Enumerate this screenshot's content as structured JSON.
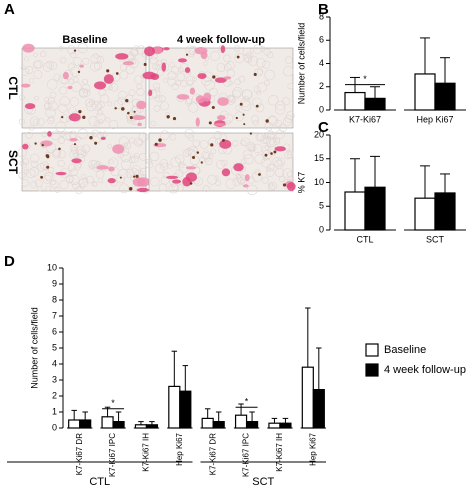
{
  "panel_a": {
    "label": "A",
    "columns": [
      "Baseline",
      "4 week follow-up"
    ],
    "rows": [
      "CTL",
      "SCT"
    ]
  },
  "chart_data": [
    {
      "type": "bar",
      "label": "B",
      "y_label": "Number of cells/field",
      "categories": [
        "K7-Ki67",
        "Hep Ki67"
      ],
      "significance": [
        "*",
        null
      ],
      "series": [
        {
          "color": "#ffffff",
          "values": [
            1.5,
            3.1
          ],
          "errors": [
            1.3,
            3.1
          ]
        },
        {
          "color": "#000000",
          "values": [
            1.0,
            2.3
          ],
          "errors": [
            1.0,
            2.2
          ]
        }
      ],
      "ylim": [
        0,
        8
      ],
      "yticks": [
        0,
        2,
        4,
        6,
        8
      ]
    },
    {
      "type": "bar",
      "label": "C",
      "y_label": "% K7",
      "categories": [
        "CTL",
        "SCT"
      ],
      "series": [
        {
          "color": "#ffffff",
          "values": [
            8.0,
            6.7
          ],
          "errors": [
            7.0,
            6.8
          ]
        },
        {
          "color": "#000000",
          "values": [
            9.0,
            7.8
          ],
          "errors": [
            6.5,
            4.0
          ]
        }
      ],
      "ylim": [
        0,
        20
      ],
      "yticks": [
        0,
        5,
        10,
        15,
        20
      ]
    },
    {
      "type": "bar",
      "label": "D",
      "y_label": "Number of cells/field",
      "categories": [
        "K7-Ki67 DR",
        "K7-Ki67 IPC",
        "K7-Ki67 IH",
        "Hep Ki67",
        "K7-Ki67 DR",
        "K7-Ki67 IPC",
        "K7-Ki67 IH",
        "Hep Ki67"
      ],
      "group_labels": [
        "CTL",
        "SCT"
      ],
      "significance": [
        null,
        "*",
        null,
        null,
        null,
        "*",
        null,
        null
      ],
      "series": [
        {
          "name": "Baseline",
          "color": "#ffffff",
          "values": [
            0.5,
            0.7,
            0.2,
            2.6,
            0.6,
            0.8,
            0.3,
            3.8
          ],
          "errors": [
            0.6,
            0.6,
            0.2,
            2.2,
            0.6,
            0.7,
            0.3,
            3.7
          ]
        },
        {
          "name": "4 week follow-up",
          "color": "#000000",
          "values": [
            0.5,
            0.4,
            0.2,
            2.3,
            0.4,
            0.4,
            0.3,
            2.4
          ],
          "errors": [
            0.5,
            0.6,
            0.2,
            1.6,
            0.6,
            0.6,
            0.3,
            2.6
          ]
        }
      ],
      "ylim": [
        0,
        10
      ],
      "yticks": [
        0,
        1,
        2,
        3,
        4,
        5,
        6,
        7,
        8,
        9,
        10
      ],
      "legend": "right"
    }
  ]
}
